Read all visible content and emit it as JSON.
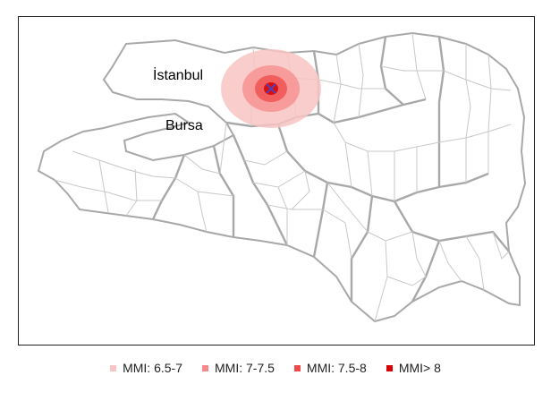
{
  "map": {
    "cities": [
      {
        "name": "İstanbul"
      },
      {
        "name": "Bursa"
      }
    ],
    "epicenter_marker": "x-cross-icon",
    "colors": {
      "mmi_6_5_7": "#f9c4c4",
      "mmi_7_7_5": "#f68a8a",
      "mmi_7_5_8": "#ef4a4a",
      "mmi_gt_8": "#d60000",
      "epicenter": "#3a4bd8",
      "district_border": "#c8c8c8",
      "province_border": "#a8a8a8"
    }
  },
  "legend": {
    "items": [
      {
        "label": "MMI: 6.5-7",
        "color": "#f9c4c4"
      },
      {
        "label": "MMI: 7-7.5",
        "color": "#f68a8a"
      },
      {
        "label": "MMI: 7.5-8",
        "color": "#ef4a4a"
      },
      {
        "label": "MMI> 8",
        "color": "#d60000"
      }
    ]
  }
}
